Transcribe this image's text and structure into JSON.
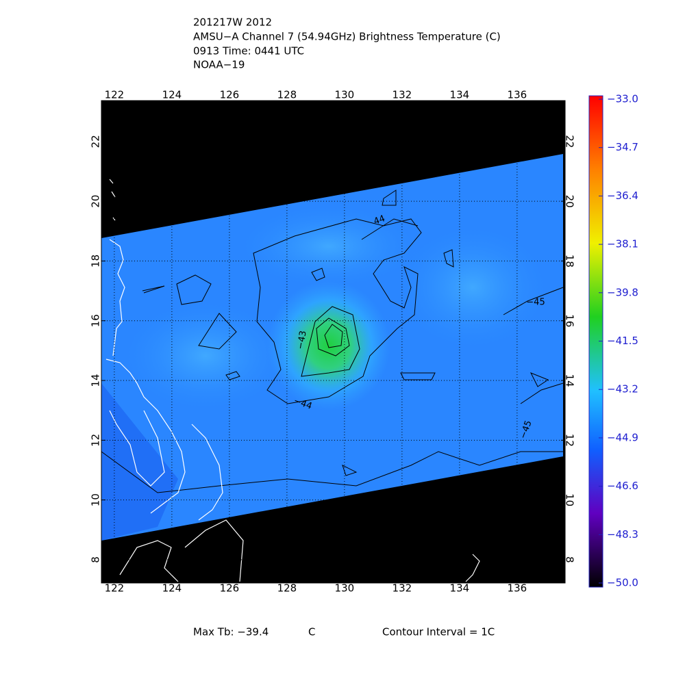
{
  "header": {
    "lines": [
      "201217W 2012",
      "AMSU−A Channel 7 (54.94GHz) Brightness Temperature (C)",
      "0913 Time: 0441 UTC",
      "NOAA−19"
    ]
  },
  "map": {
    "lonlim": [
      121.55,
      137.67
    ],
    "latlim": [
      7.22,
      23.37
    ],
    "lon_ticks": [
      122,
      124,
      126,
      128,
      130,
      132,
      134,
      136
    ],
    "lat_ticks": [
      8,
      10,
      12,
      14,
      16,
      18,
      20,
      22
    ],
    "contour_labels": [
      "44",
      "−45",
      "−43",
      "−44",
      "−45"
    ]
  },
  "colorbar": {
    "lim": [
      -50,
      -33
    ],
    "ticks": [
      {
        "value": -33,
        "label": "−33.0"
      },
      {
        "value": -34.7,
        "label": "−34.7"
      },
      {
        "value": -36.4,
        "label": "−36.4"
      },
      {
        "value": -38.1,
        "label": "−38.1"
      },
      {
        "value": -39.8,
        "label": "−39.8"
      },
      {
        "value": -41.5,
        "label": "−41.5"
      },
      {
        "value": -43.2,
        "label": "−43.2"
      },
      {
        "value": -44.9,
        "label": "−44.9"
      },
      {
        "value": -46.6,
        "label": "−46.6"
      },
      {
        "value": -48.3,
        "label": "−48.3"
      },
      {
        "value": -50,
        "label": "−50.0"
      }
    ]
  },
  "footer": {
    "max_tb": "Max Tb: −39.4",
    "unit": "C",
    "contour_interval": "Contour Interval = 1C"
  }
}
